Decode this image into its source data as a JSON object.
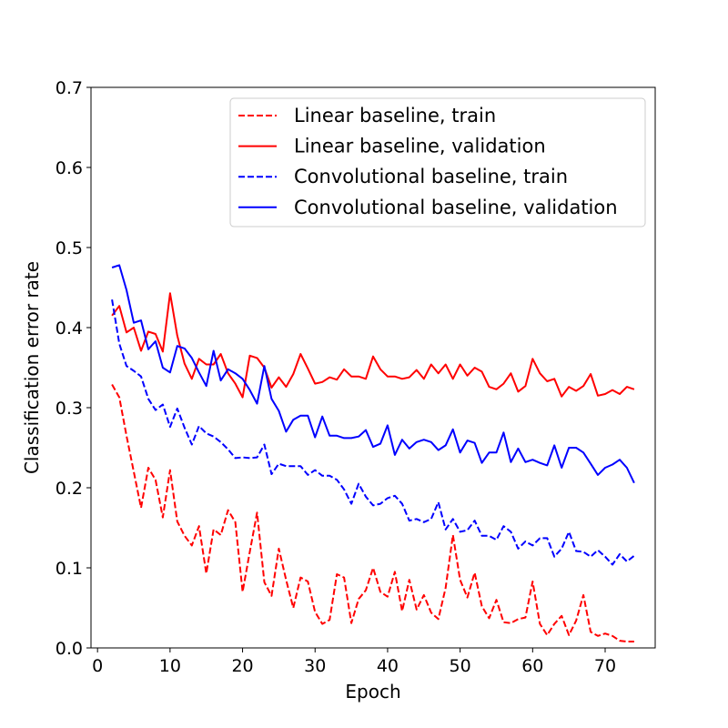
{
  "chart_data": {
    "type": "line",
    "title": "",
    "xlabel": "Epoch",
    "ylabel": "Classification error rate",
    "xlim": [
      -0.9,
      76.9
    ],
    "ylim": [
      0.0,
      0.7
    ],
    "xticks": [
      0,
      10,
      20,
      30,
      40,
      50,
      60,
      70
    ],
    "xtick_labels": [
      "0",
      "10",
      "20",
      "30",
      "40",
      "50",
      "60",
      "70"
    ],
    "yticks": [
      0.0,
      0.1,
      0.2,
      0.3,
      0.4,
      0.5,
      0.6,
      0.7
    ],
    "ytick_labels": [
      "0.0",
      "0.1",
      "0.2",
      "0.3",
      "0.4",
      "0.5",
      "0.6",
      "0.7"
    ],
    "grid": false,
    "legend": {
      "location": "upper right"
    },
    "series": [
      {
        "name": "Linear baseline, train",
        "color": "#ff0000",
        "style": "dashed",
        "x": [
          2,
          3,
          4,
          5,
          6,
          7,
          8,
          9,
          10,
          11,
          12,
          13,
          14,
          15,
          16,
          17,
          18,
          19,
          20,
          21,
          22,
          23,
          24,
          25,
          26,
          27,
          28,
          29,
          30,
          31,
          32,
          33,
          34,
          35,
          36,
          37,
          38,
          39,
          40,
          41,
          42,
          43,
          44,
          45,
          46,
          47,
          48,
          49,
          50,
          51,
          52,
          53,
          54,
          55,
          56,
          57,
          58,
          59,
          60,
          61,
          62,
          63,
          64,
          65,
          66,
          67,
          68,
          69,
          70,
          71,
          72,
          73,
          74
        ],
        "values": [
          0.329,
          0.313,
          0.265,
          0.22,
          0.175,
          0.225,
          0.21,
          0.163,
          0.222,
          0.158,
          0.14,
          0.128,
          0.152,
          0.093,
          0.148,
          0.141,
          0.172,
          0.157,
          0.07,
          0.12,
          0.169,
          0.082,
          0.065,
          0.124,
          0.085,
          0.05,
          0.088,
          0.083,
          0.045,
          0.03,
          0.035,
          0.092,
          0.088,
          0.031,
          0.061,
          0.072,
          0.1,
          0.07,
          0.064,
          0.095,
          0.046,
          0.085,
          0.048,
          0.066,
          0.044,
          0.036,
          0.075,
          0.141,
          0.085,
          0.063,
          0.094,
          0.052,
          0.037,
          0.06,
          0.032,
          0.031,
          0.036,
          0.038,
          0.083,
          0.03,
          0.016,
          0.03,
          0.04,
          0.016,
          0.034,
          0.066,
          0.02,
          0.015,
          0.018,
          0.015,
          0.009,
          0.008,
          0.008
        ]
      },
      {
        "name": "Linear baseline, validation",
        "color": "#ff0000",
        "style": "solid",
        "x": [
          2,
          3,
          4,
          5,
          6,
          7,
          8,
          9,
          10,
          11,
          12,
          13,
          14,
          15,
          16,
          17,
          18,
          19,
          20,
          21,
          22,
          23,
          24,
          25,
          26,
          27,
          28,
          29,
          30,
          31,
          32,
          33,
          34,
          35,
          36,
          37,
          38,
          39,
          40,
          41,
          42,
          43,
          44,
          45,
          46,
          47,
          48,
          49,
          50,
          51,
          52,
          53,
          54,
          55,
          56,
          57,
          58,
          59,
          60,
          61,
          62,
          63,
          64,
          65,
          66,
          67,
          68,
          69,
          70,
          71,
          72,
          73,
          74
        ],
        "values": [
          0.415,
          0.427,
          0.394,
          0.4,
          0.371,
          0.395,
          0.392,
          0.37,
          0.443,
          0.39,
          0.355,
          0.336,
          0.361,
          0.354,
          0.354,
          0.367,
          0.343,
          0.33,
          0.313,
          0.365,
          0.362,
          0.35,
          0.325,
          0.338,
          0.326,
          0.342,
          0.367,
          0.349,
          0.33,
          0.332,
          0.338,
          0.335,
          0.348,
          0.339,
          0.339,
          0.336,
          0.364,
          0.348,
          0.339,
          0.339,
          0.336,
          0.338,
          0.347,
          0.336,
          0.354,
          0.343,
          0.354,
          0.336,
          0.354,
          0.34,
          0.35,
          0.345,
          0.326,
          0.323,
          0.33,
          0.343,
          0.32,
          0.327,
          0.361,
          0.343,
          0.333,
          0.336,
          0.314,
          0.326,
          0.321,
          0.327,
          0.342,
          0.315,
          0.317,
          0.322,
          0.317,
          0.326,
          0.323
        ]
      },
      {
        "name": "Convolutional baseline, train",
        "color": "#0000ff",
        "style": "dashed",
        "x": [
          2,
          3,
          4,
          5,
          6,
          7,
          8,
          9,
          10,
          11,
          12,
          13,
          14,
          15,
          16,
          17,
          18,
          19,
          20,
          21,
          22,
          23,
          24,
          25,
          26,
          27,
          28,
          29,
          30,
          31,
          32,
          33,
          34,
          35,
          36,
          37,
          38,
          39,
          40,
          41,
          42,
          43,
          44,
          45,
          46,
          47,
          48,
          49,
          50,
          51,
          52,
          53,
          54,
          55,
          56,
          57,
          58,
          59,
          60,
          61,
          62,
          63,
          64,
          65,
          66,
          67,
          68,
          69,
          70,
          71,
          72,
          73,
          74
        ],
        "values": [
          0.435,
          0.38,
          0.352,
          0.346,
          0.339,
          0.311,
          0.297,
          0.304,
          0.276,
          0.299,
          0.275,
          0.254,
          0.277,
          0.268,
          0.264,
          0.257,
          0.248,
          0.237,
          0.238,
          0.237,
          0.238,
          0.254,
          0.217,
          0.23,
          0.227,
          0.227,
          0.227,
          0.216,
          0.222,
          0.215,
          0.215,
          0.21,
          0.198,
          0.18,
          0.205,
          0.189,
          0.178,
          0.18,
          0.187,
          0.19,
          0.18,
          0.159,
          0.161,
          0.157,
          0.161,
          0.182,
          0.148,
          0.161,
          0.145,
          0.147,
          0.159,
          0.14,
          0.14,
          0.135,
          0.152,
          0.145,
          0.124,
          0.133,
          0.128,
          0.137,
          0.137,
          0.114,
          0.124,
          0.145,
          0.121,
          0.12,
          0.114,
          0.122,
          0.114,
          0.104,
          0.117,
          0.108,
          0.115
        ]
      },
      {
        "name": "Convolutional baseline, validation",
        "color": "#0000ff",
        "style": "solid",
        "x": [
          2,
          3,
          4,
          5,
          6,
          7,
          8,
          9,
          10,
          11,
          12,
          13,
          14,
          15,
          16,
          17,
          18,
          19,
          20,
          21,
          22,
          23,
          24,
          25,
          26,
          27,
          28,
          29,
          30,
          31,
          32,
          33,
          34,
          35,
          36,
          37,
          38,
          39,
          40,
          41,
          42,
          43,
          44,
          45,
          46,
          47,
          48,
          49,
          50,
          51,
          52,
          53,
          54,
          55,
          56,
          57,
          58,
          59,
          60,
          61,
          62,
          63,
          64,
          65,
          66,
          67,
          68,
          69,
          70,
          71,
          72,
          73,
          74
        ],
        "values": [
          0.475,
          0.478,
          0.447,
          0.406,
          0.409,
          0.373,
          0.383,
          0.35,
          0.344,
          0.377,
          0.374,
          0.362,
          0.344,
          0.327,
          0.371,
          0.334,
          0.348,
          0.343,
          0.336,
          0.322,
          0.305,
          0.352,
          0.311,
          0.296,
          0.27,
          0.285,
          0.29,
          0.29,
          0.263,
          0.289,
          0.265,
          0.265,
          0.262,
          0.262,
          0.264,
          0.272,
          0.251,
          0.255,
          0.278,
          0.241,
          0.26,
          0.249,
          0.257,
          0.26,
          0.257,
          0.247,
          0.253,
          0.273,
          0.244,
          0.259,
          0.256,
          0.231,
          0.244,
          0.244,
          0.269,
          0.232,
          0.249,
          0.232,
          0.235,
          0.231,
          0.228,
          0.253,
          0.225,
          0.25,
          0.25,
          0.244,
          0.23,
          0.216,
          0.225,
          0.229,
          0.235,
          0.225,
          0.206
        ]
      }
    ]
  }
}
